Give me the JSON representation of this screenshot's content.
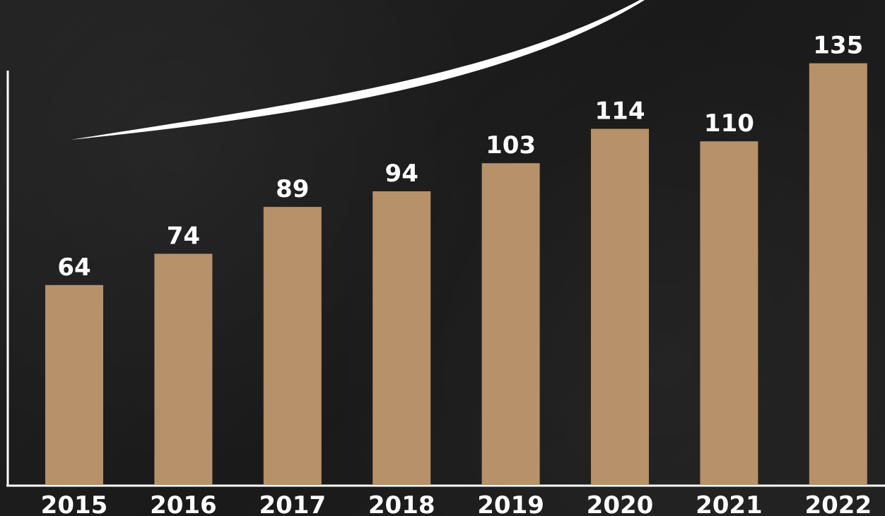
{
  "chart_data": {
    "type": "bar",
    "categories": [
      "2015",
      "2016",
      "2017",
      "2018",
      "2019",
      "2020",
      "2021",
      "2022"
    ],
    "values": [
      64,
      74,
      89,
      94,
      103,
      114,
      110,
      135
    ],
    "data_labels": [
      "64",
      "74",
      "89",
      "94",
      "103",
      "114",
      "110",
      "135"
    ],
    "title": "",
    "xlabel": "",
    "ylabel": "",
    "ylim": [
      0,
      141
    ],
    "grid": false,
    "legend": "none",
    "trend_arrow": true,
    "colors": {
      "bar": "#b69169",
      "text": "#ffffff",
      "axis": "#ffffff",
      "background": "#1e1e1e"
    }
  }
}
